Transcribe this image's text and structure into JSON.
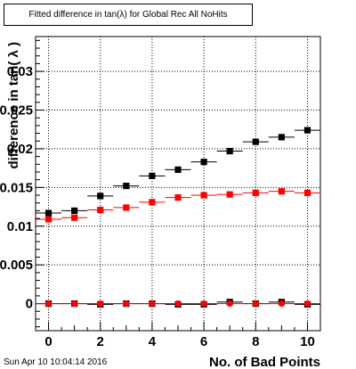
{
  "chart_data": {
    "type": "scatter",
    "title": "Fitted difference in tan(λ) for Global Rec All NoHits",
    "xlabel": "No. of Bad Points",
    "ylabel": "difference in tan( λ )",
    "xlim": [
      -0.5,
      10.5
    ],
    "ylim": [
      -0.0035,
      0.0345
    ],
    "grid": true,
    "x_ticks": [
      "0",
      "2",
      "4",
      "6",
      "8",
      "10"
    ],
    "y_ticks": [
      "0",
      "0.005",
      "0.01",
      "0.015",
      "0.02",
      "0.025",
      "0.03"
    ],
    "series": [
      {
        "marker": "square",
        "color": "#000000",
        "x": [
          0,
          1,
          2,
          3,
          4,
          5,
          6,
          7,
          8,
          9,
          10
        ],
        "values": [
          0.0117,
          0.012,
          0.0139,
          0.0152,
          0.0165,
          0.0173,
          0.0183,
          0.0197,
          0.0209,
          0.0215,
          0.0224
        ]
      },
      {
        "marker": "square",
        "color": "#ff0000",
        "x": [
          0,
          1,
          2,
          3,
          4,
          5,
          6,
          7,
          8,
          9,
          10
        ],
        "values": [
          0.0109,
          0.0111,
          0.0121,
          0.0124,
          0.0131,
          0.0137,
          0.014,
          0.0141,
          0.0143,
          0.0145,
          0.0143
        ]
      },
      {
        "marker": "square",
        "color": "#000000",
        "x": [
          0,
          1,
          2,
          3,
          4,
          5,
          6,
          7,
          8,
          9,
          10
        ],
        "values": [
          0.0,
          0.0,
          -0.0001,
          0.0,
          0.0,
          -0.0001,
          -0.0001,
          0.0002,
          0.0,
          0.0002,
          -0.0001
        ]
      },
      {
        "marker": "circle",
        "color": "#ff0000",
        "x": [
          0,
          1,
          2,
          3,
          4,
          5,
          6,
          7,
          8,
          9,
          10
        ],
        "values": [
          0.0,
          0.0,
          0.0,
          0.0,
          0.0,
          0.0,
          0.0,
          0.0,
          0.0,
          0.0,
          0.0
        ]
      }
    ]
  },
  "footer": {
    "date": "Sun Apr 10 10:04:14 2016"
  }
}
